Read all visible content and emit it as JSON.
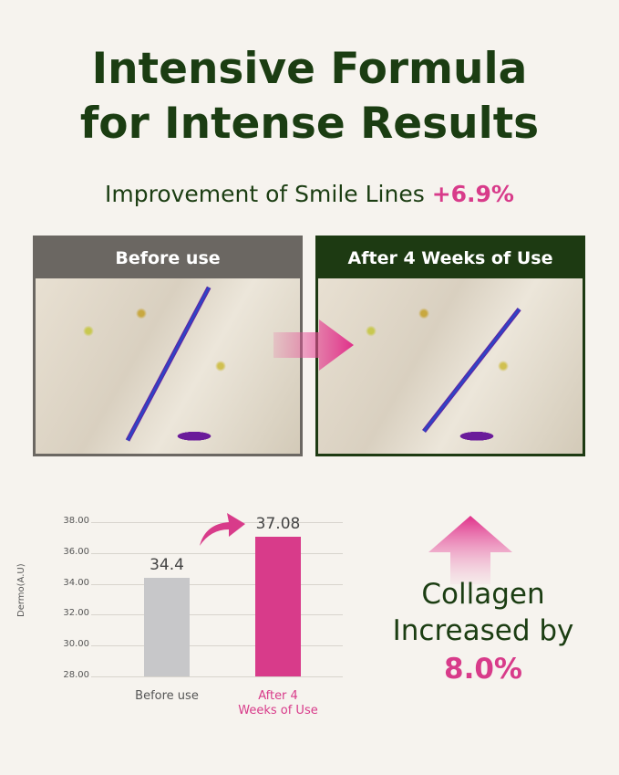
{
  "title": {
    "line1": "Intensive Formula",
    "line2": "for Intense Results"
  },
  "subtitle": {
    "text": "Improvement of Smile Lines ",
    "value": "+6.9%"
  },
  "panels": {
    "before": "Before use",
    "after": "After 4 Weeks of Use"
  },
  "colors": {
    "green": "#1b3d12",
    "pink": "#d83b8a",
    "gray": "#c7c7c9"
  },
  "chart_data": {
    "type": "bar",
    "ylabel": "Dermo(A.U)",
    "ylim": [
      28,
      38
    ],
    "yticks": [
      "38.00",
      "36.00",
      "34.00",
      "32.00",
      "30.00",
      "28.00"
    ],
    "categories": [
      "Before use",
      "After 4 Weeks of Use"
    ],
    "values": [
      34.4,
      37.08
    ],
    "value_labels": [
      "34.4",
      "37.08"
    ],
    "grid": true
  },
  "collagen": {
    "line1": "Collagen",
    "line2": "Increased by",
    "value": "8.0%"
  }
}
